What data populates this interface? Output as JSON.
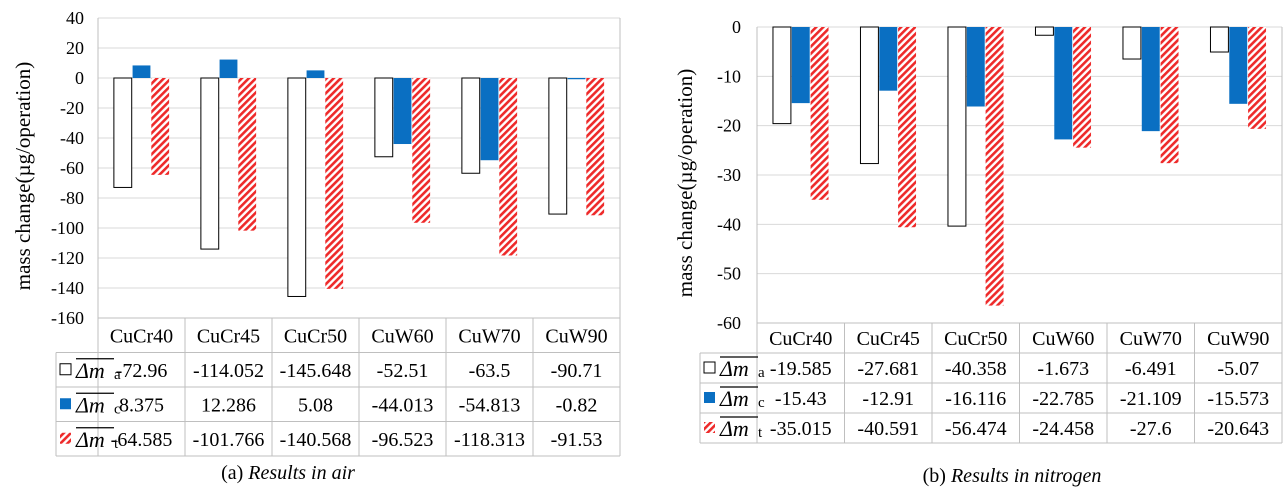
{
  "chart_data": [
    {
      "type": "bar",
      "caption_prefix": "(a)",
      "caption_italic": "Results in air",
      "ylabel": "mass change(µg/operation)",
      "ylim": [
        -160,
        40
      ],
      "yticks": [
        40,
        20,
        0,
        -20,
        -40,
        -60,
        -80,
        -100,
        -120,
        -140,
        -160
      ],
      "grid": true,
      "categories": [
        "CuCr40",
        "CuCr45",
        "CuCr50",
        "CuW60",
        "CuW70",
        "CuW90"
      ],
      "series": [
        {
          "name": "Δm",
          "subscript": "a",
          "style": "outline",
          "values": [
            -72.96,
            -114.052,
            -145.648,
            -52.51,
            -63.5,
            -90.71
          ],
          "labels": [
            "-72.96",
            "-114.052",
            "-145.648",
            "-52.51",
            "-63.5",
            "-90.71"
          ]
        },
        {
          "name": "Δm",
          "subscript": "c",
          "style": "solid",
          "values": [
            8.375,
            12.286,
            5.08,
            -44.013,
            -54.813,
            -0.82
          ],
          "labels": [
            "8.375",
            "12.286",
            "5.08",
            "-44.013",
            "-54.813",
            "-0.82"
          ]
        },
        {
          "name": "Δm",
          "subscript": "t",
          "style": "hatch",
          "values": [
            -64.585,
            -101.766,
            -140.568,
            -96.523,
            -118.313,
            -91.53
          ],
          "labels": [
            "-64.585",
            "-101.766",
            "-140.568",
            "-96.523",
            "-118.313",
            "-91.53"
          ]
        }
      ]
    },
    {
      "type": "bar",
      "caption_prefix": "(b)",
      "caption_italic": "Results in nitrogen",
      "ylabel": "mass change(µg/operation)",
      "ylim": [
        -60,
        0
      ],
      "yticks": [
        0,
        -10,
        -20,
        -30,
        -40,
        -50,
        -60
      ],
      "grid": true,
      "categories": [
        "CuCr40",
        "CuCr45",
        "CuCr50",
        "CuW60",
        "CuW70",
        "CuW90"
      ],
      "series": [
        {
          "name": "Δm",
          "subscript": "a",
          "style": "outline",
          "values": [
            -19.585,
            -27.681,
            -40.358,
            -1.673,
            -6.491,
            -5.07
          ],
          "labels": [
            "-19.585",
            "-27.681",
            "-40.358",
            "-1.673",
            "-6.491",
            "-5.07"
          ]
        },
        {
          "name": "Δm",
          "subscript": "c",
          "style": "solid",
          "values": [
            -15.43,
            -12.91,
            -16.116,
            -22.785,
            -21.109,
            -15.573
          ],
          "labels": [
            "-15.43",
            "-12.91",
            "-16.116",
            "-22.785",
            "-21.109",
            "-15.573"
          ]
        },
        {
          "name": "Δm",
          "subscript": "t",
          "style": "hatch",
          "values": [
            -35.015,
            -40.591,
            -56.474,
            -24.458,
            -27.6,
            -20.643
          ],
          "labels": [
            "-35.015",
            "-40.591",
            "-56.474",
            "-24.458",
            "-27.6",
            "-20.643"
          ]
        }
      ]
    }
  ],
  "colors": {
    "blue": "#0a6fc2",
    "red": "#ee2a2a",
    "grid": "#d9d9d9",
    "border": "#bfbfbf"
  }
}
